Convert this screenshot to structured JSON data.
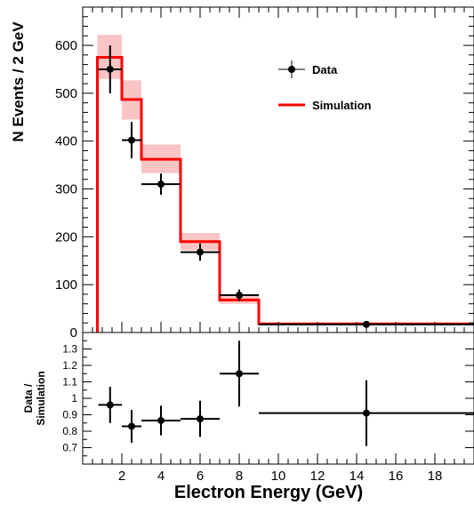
{
  "chart_data": [
    {
      "type": "line",
      "panel": "main",
      "ylabel": "N Events / 2 GeV",
      "xlim": [
        0,
        20
      ],
      "ylim": [
        0,
        680
      ],
      "yticks": [
        0,
        100,
        200,
        300,
        400,
        500,
        600
      ],
      "yticklabels": [
        "0",
        "100",
        "200",
        "300",
        "400",
        "500",
        "600"
      ],
      "legend": {
        "position": "top-right",
        "entries": [
          {
            "label": "Data",
            "marker": "point-with-errorbars"
          },
          {
            "label": "Simulation",
            "marker": "red-line"
          }
        ]
      },
      "colors": {
        "simulation": "#ff0000",
        "simulation_band": "#f8c4c4",
        "data": "#000000"
      },
      "series": [
        {
          "name": "Simulation",
          "style": "step",
          "bins": [
            [
              0.75,
              2
            ],
            [
              2,
              3
            ],
            [
              3,
              5
            ],
            [
              5,
              7
            ],
            [
              7,
              9
            ],
            [
              9,
              20
            ]
          ],
          "values": [
            575,
            487,
            362,
            190,
            68,
            18
          ],
          "band_low": [
            530,
            445,
            333,
            172,
            60,
            16
          ],
          "band_high": [
            622,
            527,
            393,
            208,
            76,
            20
          ]
        },
        {
          "name": "Data",
          "style": "errorbar",
          "x": [
            1.4,
            2.5,
            4.0,
            6.0,
            8.0,
            14.5
          ],
          "xerr": [
            0.6,
            0.5,
            1.0,
            1.0,
            1.0,
            5.5
          ],
          "y": [
            550,
            402,
            310,
            168,
            78,
            17
          ],
          "yerr": [
            50,
            38,
            22,
            18,
            12,
            4
          ]
        }
      ]
    },
    {
      "type": "scatter",
      "panel": "ratio",
      "xlabel": "Electron Energy (GeV)",
      "ylabel": "Data / Simulation",
      "xlim": [
        0,
        20
      ],
      "ylim": [
        0.6,
        1.4
      ],
      "xticks": [
        2,
        4,
        6,
        8,
        10,
        12,
        14,
        16,
        18
      ],
      "xticklabels": [
        "2",
        "4",
        "6",
        "8",
        "10",
        "12",
        "14",
        "16",
        "18"
      ],
      "yticks": [
        0.7,
        0.8,
        0.9,
        1.0,
        1.1,
        1.2,
        1.3
      ],
      "yticklabels": [
        "0.7",
        "0.8",
        "0.9",
        "1",
        "1.1",
        "1.2",
        "1.3"
      ],
      "x": [
        1.4,
        2.5,
        4.0,
        6.0,
        8.0,
        14.5
      ],
      "xerr": [
        0.6,
        0.5,
        1.0,
        1.0,
        1.0,
        5.5
      ],
      "y": [
        0.96,
        0.83,
        0.865,
        0.875,
        1.15,
        0.91
      ],
      "yerr": [
        0.11,
        0.1,
        0.09,
        0.11,
        0.2,
        0.2
      ]
    }
  ]
}
